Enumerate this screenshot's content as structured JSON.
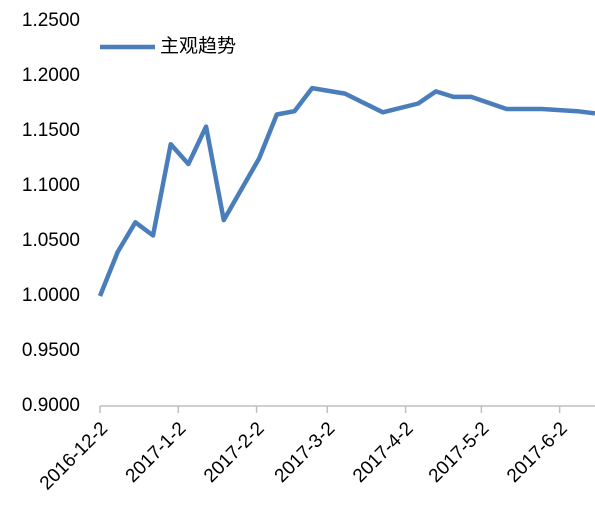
{
  "chart_data": {
    "type": "line",
    "x": [
      "2016-12-2",
      "2016-12-9",
      "2016-12-16",
      "2016-12-23",
      "2016-12-30",
      "2017-1-6",
      "2017-1-13",
      "2017-1-20",
      "2017-1-27",
      "2017-2-3",
      "2017-2-10",
      "2017-2-17",
      "2017-2-24",
      "2017-3-9",
      "2017-3-24",
      "2017-4-7",
      "2017-4-14",
      "2017-4-21",
      "2017-4-28",
      "2017-5-12",
      "2017-5-26",
      "2017-6-9",
      "2017-6-16"
    ],
    "series": [
      {
        "name": "主观趋势",
        "color": "#4a7ebb",
        "values": [
          1.0,
          1.04,
          1.067,
          1.055,
          1.138,
          1.12,
          1.154,
          1.069,
          1.097,
          1.125,
          1.165,
          1.168,
          1.189,
          1.184,
          1.167,
          1.175,
          1.186,
          1.181,
          1.181,
          1.17,
          1.17,
          1.168,
          1.166
        ]
      }
    ],
    "xlim": [
      "2016-12-2",
      "2017-6-16"
    ],
    "xticks": [
      "2016-12-2",
      "2017-1-2",
      "2017-2-2",
      "2017-3-2",
      "2017-4-2",
      "2017-5-2",
      "2017-6-2"
    ],
    "ylim": [
      0.9,
      1.25
    ],
    "yticks": [
      {
        "value": 0.9,
        "label": "0.9000"
      },
      {
        "value": 0.95,
        "label": "0.9500"
      },
      {
        "value": 1.0,
        "label": "1.0000"
      },
      {
        "value": 1.05,
        "label": "1.0500"
      },
      {
        "value": 1.1,
        "label": "1.1000"
      },
      {
        "value": 1.15,
        "label": "1.1500"
      },
      {
        "value": 1.2,
        "label": "1.2000"
      },
      {
        "value": 1.25,
        "label": "1.2500"
      }
    ],
    "grid": false,
    "legend": "top-left"
  }
}
